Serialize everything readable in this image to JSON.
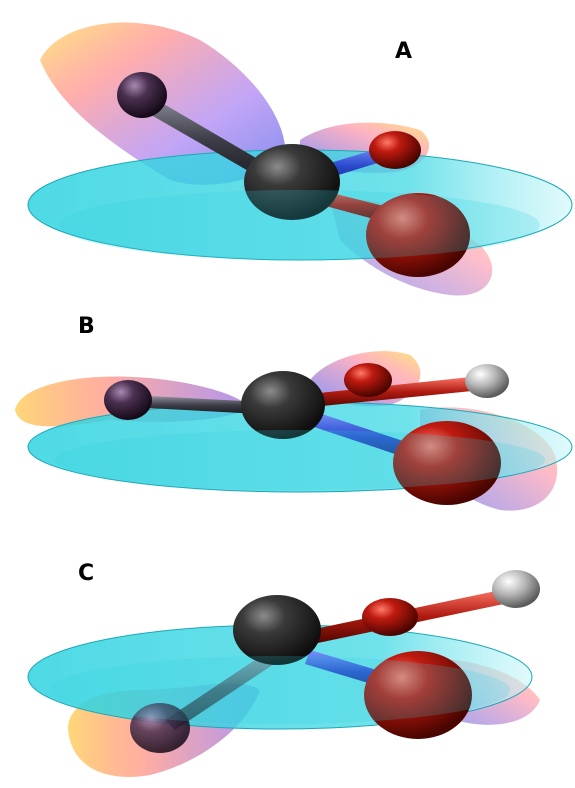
{
  "panels": [
    {
      "label": "A"
    },
    {
      "label": "B"
    },
    {
      "label": "C"
    }
  ],
  "colors": {
    "plane": "#2fd3e0",
    "plane_edge": "#1aa9b5",
    "carbon": "#2b2b2b",
    "oxygen": "#b0180f",
    "hydrogen": "#bdbdbd",
    "substituent": "#3a2440",
    "lobe_violet": "#8a5cf0",
    "lobe_blue": "#2a3cf0",
    "lobe_yellow": "#ffd34a",
    "lobe_pink": "#ff6a7a"
  }
}
